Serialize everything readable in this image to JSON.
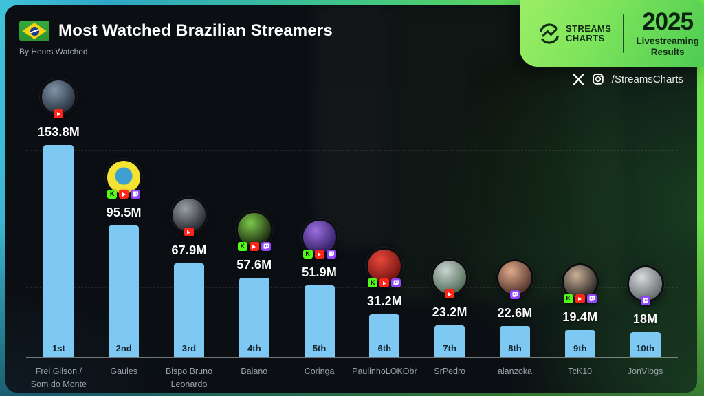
{
  "header": {
    "title": "Most Watched Brazilian Streamers",
    "subtitle": "By Hours Watched",
    "flag": "brazil-flag"
  },
  "brand": {
    "logo_line1": "STREAMS",
    "logo_line2": "CHARTS",
    "year": "2025",
    "result_line1": "Livestreaming",
    "result_line2": "Results",
    "social_handle": "/StreamsCharts",
    "social_icons": [
      "x-icon",
      "instagram-icon"
    ]
  },
  "chart_data": {
    "type": "bar",
    "title": "Most Watched Brazilian Streamers",
    "subtitle": "By Hours Watched",
    "unit": "millions of hours watched",
    "categories": [
      "Frei Gilson / Som do Monte",
      "Gaules",
      "Bispo Bruno Leonardo",
      "Baiano",
      "Coringa",
      "PaulinhoLOKObr",
      "SrPedro",
      "alanzoka",
      "TcK10",
      "JonVlogs"
    ],
    "values": [
      153.8,
      95.5,
      67.9,
      57.6,
      51.9,
      31.2,
      23.2,
      22.6,
      19.4,
      18
    ],
    "value_labels": [
      "153.8M",
      "95.5M",
      "67.9M",
      "57.6M",
      "51.9M",
      "31.2M",
      "23.2M",
      "22.6M",
      "19.4M",
      "18M"
    ],
    "ranks": [
      "1st",
      "2nd",
      "3rd",
      "4th",
      "5th",
      "6th",
      "7th",
      "8th",
      "9th",
      "10th"
    ],
    "ylim": [
      0,
      160
    ],
    "bar_color": "#7ec9f4",
    "legend": "none",
    "grid": "faint dashed horizontal lines"
  },
  "streamers": [
    {
      "name_lines": [
        "Frei Gilson /",
        "Som do Monte"
      ],
      "value": 153.8,
      "label": "153.8M",
      "rank": "1st",
      "platforms": [
        "youtube"
      ],
      "avatar_colors": [
        "#8195a8",
        "#232e3a"
      ],
      "avatar_blob": false
    },
    {
      "name_lines": [
        "Gaules"
      ],
      "value": 95.5,
      "label": "95.5M",
      "rank": "2nd",
      "platforms": [
        "kick",
        "youtube",
        "twitch"
      ],
      "avatar_colors": [
        "#3f9fd0",
        "#f5e232"
      ],
      "avatar_blob": true
    },
    {
      "name_lines": [
        "Bispo Bruno",
        "Leonardo"
      ],
      "value": 67.9,
      "label": "67.9M",
      "rank": "3rd",
      "platforms": [
        "youtube"
      ],
      "avatar_colors": [
        "#9aa0a6",
        "#23262a"
      ],
      "avatar_blob": false
    },
    {
      "name_lines": [
        "Baiano"
      ],
      "value": 57.6,
      "label": "57.6M",
      "rank": "4th",
      "platforms": [
        "kick",
        "youtube",
        "twitch"
      ],
      "avatar_colors": [
        "#7dc94a",
        "#17230f"
      ],
      "avatar_blob": false
    },
    {
      "name_lines": [
        "Coringa"
      ],
      "value": 51.9,
      "label": "51.9M",
      "rank": "5th",
      "platforms": [
        "kick",
        "youtube",
        "twitch"
      ],
      "avatar_colors": [
        "#9a6fe0",
        "#2e1b5e"
      ],
      "avatar_blob": false
    },
    {
      "name_lines": [
        "PaulinhoLOKObr"
      ],
      "value": 31.2,
      "label": "31.2M",
      "rank": "6th",
      "platforms": [
        "kick",
        "youtube",
        "twitch"
      ],
      "avatar_colors": [
        "#e8473a",
        "#6e1410"
      ],
      "avatar_blob": false
    },
    {
      "name_lines": [
        "SrPedro"
      ],
      "value": 23.2,
      "label": "23.2M",
      "rank": "7th",
      "platforms": [
        "youtube"
      ],
      "avatar_colors": [
        "#c9d4d2",
        "#4f6a55"
      ],
      "avatar_blob": false
    },
    {
      "name_lines": [
        "alanzoka"
      ],
      "value": 22.6,
      "label": "22.6M",
      "rank": "8th",
      "platforms": [
        "twitch"
      ],
      "avatar_colors": [
        "#e0a98c",
        "#4f3227"
      ],
      "avatar_blob": false
    },
    {
      "name_lines": [
        "TcK10"
      ],
      "value": 19.4,
      "label": "19.4M",
      "rank": "9th",
      "platforms": [
        "kick",
        "youtube",
        "twitch"
      ],
      "avatar_colors": [
        "#cbb096",
        "#262422"
      ],
      "avatar_blob": false
    },
    {
      "name_lines": [
        "JonVlogs"
      ],
      "value": 18,
      "label": "18M",
      "rank": "10th",
      "platforms": [
        "twitch"
      ],
      "avatar_colors": [
        "#d6dadd",
        "#63686c"
      ],
      "avatar_blob": false
    }
  ],
  "colors": {
    "bar": "#7ec9f4",
    "rank_text": "#15242f",
    "value_text": "#ffffff",
    "name_text": "#98a2ab",
    "frame_teal": "#3bbcd6",
    "frame_green": "#69e04b",
    "panel_green_light": "#9bee65",
    "panel_green_dark": "#4ecc52",
    "kick": "#53fc18",
    "youtube": "#ff2619",
    "twitch": "#9146ff"
  }
}
